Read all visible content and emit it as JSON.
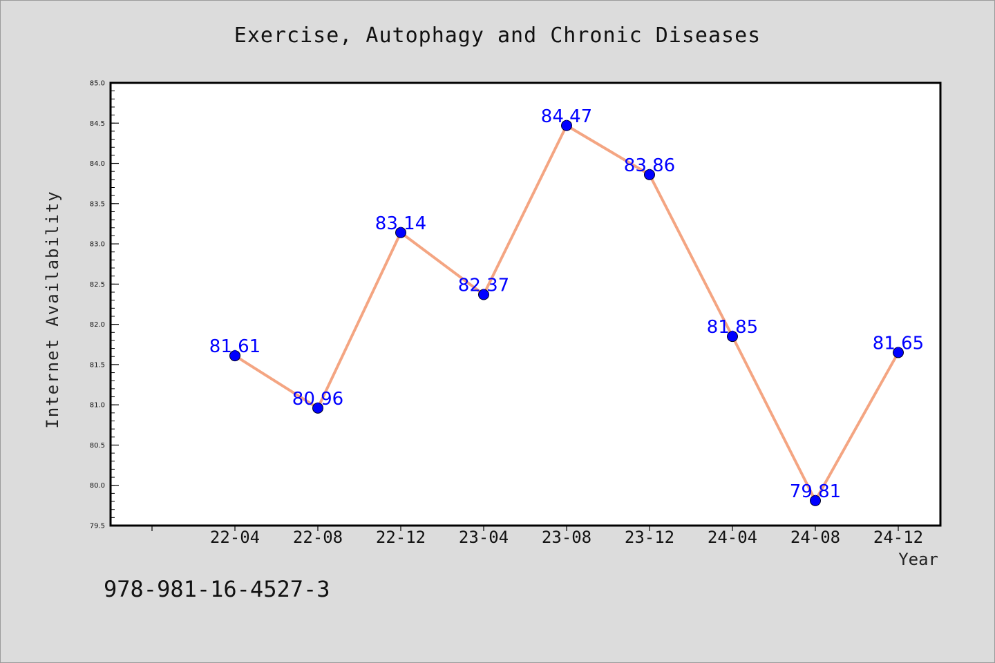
{
  "chart_data": {
    "type": "line",
    "title": "Exercise, Autophagy and Chronic Diseases",
    "xlabel": "Year",
    "ylabel": "Internet Availability",
    "categories": [
      "22-04",
      "22-08",
      "22-12",
      "23-04",
      "23-08",
      "23-12",
      "24-04",
      "24-08",
      "24-12"
    ],
    "series": [
      {
        "values": [
          81.61,
          80.96,
          83.14,
          82.37,
          84.47,
          83.86,
          81.85,
          79.81,
          81.65
        ],
        "line_color": "#f4a582",
        "marker_color": "#0000ff"
      }
    ],
    "data_labels": [
      "81.61",
      "80.96",
      "83.14",
      "82.37",
      "84.47",
      "83.86",
      "81.85",
      "79.81",
      "81.65"
    ],
    "ylim": [
      79.5,
      85.0
    ],
    "yticks": [
      "79.5",
      "80.0",
      "80.5",
      "81.0",
      "81.5",
      "82.0",
      "82.5",
      "83.0",
      "83.5",
      "84.0",
      "84.5",
      "85.0"
    ],
    "grid": false,
    "legend": false
  },
  "footer": {
    "isbn": "978-981-16-4527-3"
  }
}
